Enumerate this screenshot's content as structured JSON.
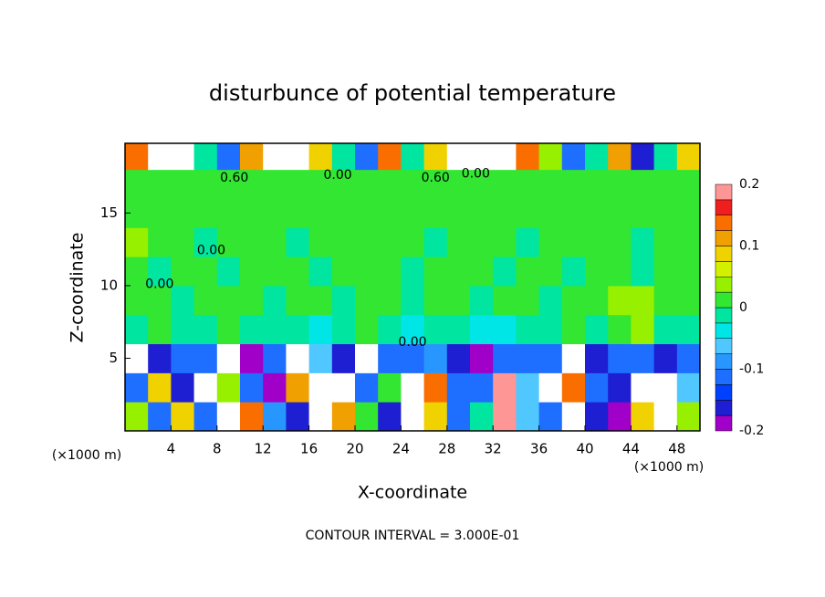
{
  "chart_data": {
    "type": "heatmap",
    "title": "disturbunce of potential temperature",
    "x_label": "X-coordinate",
    "y_label": "Z-coordinate",
    "axis_unit": "(×1000 m)",
    "footer": "CONTOUR INTERVAL = 3.000E-01",
    "xlim": [
      0,
      50
    ],
    "ylim": [
      0,
      19.8
    ],
    "xticks": [
      4,
      8,
      12,
      16,
      20,
      24,
      28,
      32,
      36,
      40,
      44,
      48
    ],
    "yticks": [
      5,
      10,
      15
    ],
    "x": [
      1,
      3,
      5,
      7,
      9,
      11,
      13,
      15,
      17,
      19,
      21,
      23,
      25,
      27,
      29,
      31,
      33,
      35,
      37,
      39,
      41,
      43,
      45,
      47,
      49
    ],
    "y": [
      1,
      3,
      5,
      7,
      9,
      11,
      13,
      15,
      17,
      19
    ],
    "z": [
      [
        0.05,
        -0.12,
        0.08,
        -0.1,
        0.3,
        0.15,
        -0.08,
        -0.15,
        0.25,
        0.12,
        0.02,
        -0.15,
        0.25,
        0.1,
        -0.12,
        0.0,
        0.18,
        -0.05,
        -0.1,
        0.22,
        -0.15,
        -0.2,
        0.1,
        0.3,
        0.05
      ],
      [
        -0.1,
        0.1,
        -0.15,
        0.3,
        0.05,
        -0.12,
        -0.18,
        0.12,
        0.22,
        0.3,
        -0.1,
        0.02,
        0.25,
        0.15,
        -0.1,
        -0.12,
        0.2,
        -0.05,
        0.3,
        0.15,
        -0.1,
        -0.15,
        0.25,
        0.3,
        -0.05
      ],
      [
        -0.22,
        -0.15,
        -0.1,
        -0.12,
        0.3,
        -0.18,
        -0.1,
        -0.22,
        -0.05,
        -0.15,
        -0.25,
        -0.1,
        -0.12,
        -0.08,
        -0.15,
        -0.2,
        -0.1,
        -0.12,
        -0.1,
        0.25,
        -0.15,
        -0.1,
        -0.12,
        -0.15,
        -0.1
      ],
      [
        0.0,
        0.01,
        -0.01,
        0.0,
        0.01,
        0.0,
        -0.02,
        0.0,
        -0.03,
        0.0,
        0.01,
        0.0,
        -0.04,
        0.0,
        0.0,
        -0.03,
        -0.04,
        -0.02,
        0.0,
        0.01,
        0.0,
        0.02,
        0.05,
        0.0,
        0.0
      ],
      [
        0.01,
        0.01,
        0.0,
        0.01,
        0.01,
        0.01,
        0.0,
        0.01,
        0.01,
        0.0,
        0.01,
        0.01,
        0.0,
        0.01,
        0.01,
        0.0,
        0.01,
        0.01,
        0.0,
        0.01,
        0.02,
        0.04,
        0.03,
        0.01,
        0.01
      ],
      [
        0.01,
        0.0,
        0.01,
        0.01,
        0.0,
        0.01,
        0.01,
        0.01,
        0.0,
        0.01,
        0.01,
        0.01,
        0.0,
        0.01,
        0.01,
        0.01,
        0.0,
        0.01,
        0.01,
        0.0,
        0.01,
        0.01,
        0.0,
        0.01,
        0.01
      ],
      [
        0.03,
        0.01,
        0.01,
        0.0,
        0.01,
        0.01,
        0.01,
        0.0,
        0.01,
        0.01,
        0.01,
        0.01,
        0.01,
        0.0,
        0.01,
        0.01,
        0.01,
        0.0,
        0.01,
        0.01,
        0.01,
        0.01,
        0.0,
        0.01,
        0.02
      ],
      [
        0.01,
        0.01,
        0.01,
        0.01,
        0.01,
        0.01,
        0.01,
        0.01,
        0.01,
        0.01,
        0.01,
        0.01,
        0.01,
        0.01,
        0.01,
        0.01,
        0.01,
        0.01,
        0.01,
        0.01,
        0.01,
        0.01,
        0.01,
        0.01,
        0.01
      ],
      [
        0.01,
        0.01,
        0.01,
        0.01,
        0.01,
        0.01,
        0.01,
        0.01,
        0.01,
        0.01,
        0.01,
        0.01,
        0.01,
        0.01,
        0.01,
        0.01,
        0.01,
        0.01,
        0.01,
        0.01,
        0.01,
        0.01,
        0.01,
        0.01,
        0.01
      ],
      [
        0.15,
        0.3,
        0.25,
        0.0,
        -0.1,
        0.12,
        0.3,
        0.3,
        0.1,
        0.0,
        -0.12,
        0.15,
        0.0,
        0.1,
        0.3,
        0.3,
        0.3,
        0.15,
        0.05,
        -0.1,
        0.0,
        0.12,
        -0.15,
        0.0,
        0.1
      ]
    ],
    "levels": [
      -0.2,
      -0.175,
      -0.15,
      -0.125,
      -0.1,
      -0.075,
      -0.05,
      -0.025,
      0,
      0.025,
      0.05,
      0.075,
      0.1,
      0.125,
      0.15,
      0.175,
      0.2
    ],
    "colors": [
      "#a000c8",
      "#1e1ed2",
      "#0040ff",
      "#1e6eff",
      "#2896ff",
      "#50c8ff",
      "#00e6e6",
      "#00e6a0",
      "#32e632",
      "#96f000",
      "#d2f000",
      "#f0d200",
      "#f0a000",
      "#fa6e00",
      "#f01e1e",
      "#ff9696"
    ],
    "colorbar_ticks": [
      -0.2,
      -0.1,
      0,
      0.1,
      0.2
    ],
    "annotations": [
      {
        "text": "0.60",
        "x": 9.5,
        "y": 17.4
      },
      {
        "text": "0.00",
        "x": 18.5,
        "y": 17.6
      },
      {
        "text": "0.60",
        "x": 27,
        "y": 17.4
      },
      {
        "text": "0.00",
        "x": 30.5,
        "y": 17.7
      },
      {
        "text": "0.00",
        "x": 7.5,
        "y": 12.4
      },
      {
        "text": "0.00",
        "x": 3,
        "y": 10.1
      },
      {
        "text": "0.00",
        "x": 25,
        "y": 6.1
      }
    ]
  }
}
